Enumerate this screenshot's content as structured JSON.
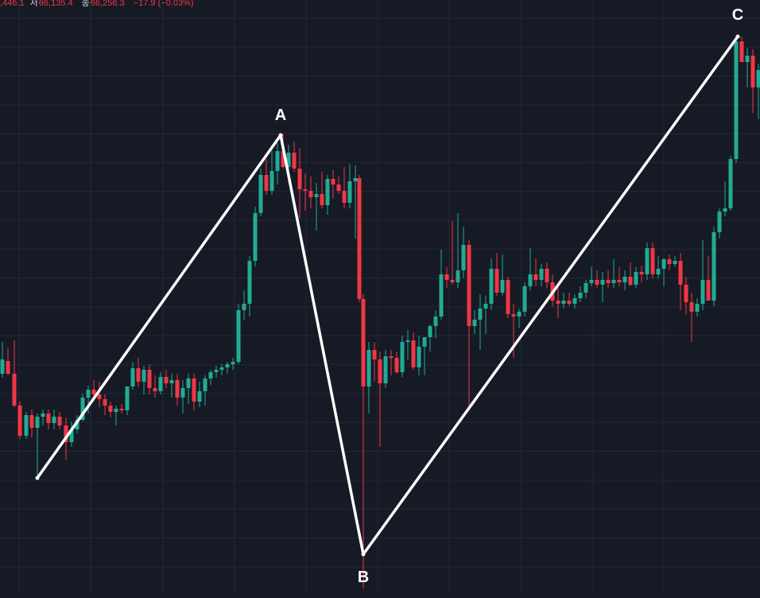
{
  "ohlc_header": {
    "open_partial": ",446.1",
    "low_label": "저",
    "low_value": "66,135.4",
    "close_label": "종",
    "close_value": "66,256.3",
    "change": "−17.9 (−0.03%)"
  },
  "colors": {
    "background": "#161a25",
    "grid": "#232836",
    "up": "#22ab94",
    "down": "#f23645",
    "pattern_line": "#ffffff",
    "label_text": "#ffffff"
  },
  "chart_data": {
    "type": "candlestick",
    "grid": true,
    "candle_open_close_pairs": [
      [
        1,
        0
      ],
      [
        0,
        1
      ],
      [
        1,
        0
      ],
      [
        0,
        1
      ],
      [
        1,
        0
      ],
      [
        0,
        1
      ],
      [
        1,
        0
      ],
      [
        0,
        1
      ],
      [
        1,
        0
      ],
      [
        0,
        1
      ]
    ],
    "pattern": {
      "type": "polyline",
      "points": [
        {
          "label": ""
        },
        {
          "label": "A"
        },
        {
          "label": "B"
        },
        {
          "label": "C"
        }
      ]
    }
  }
}
